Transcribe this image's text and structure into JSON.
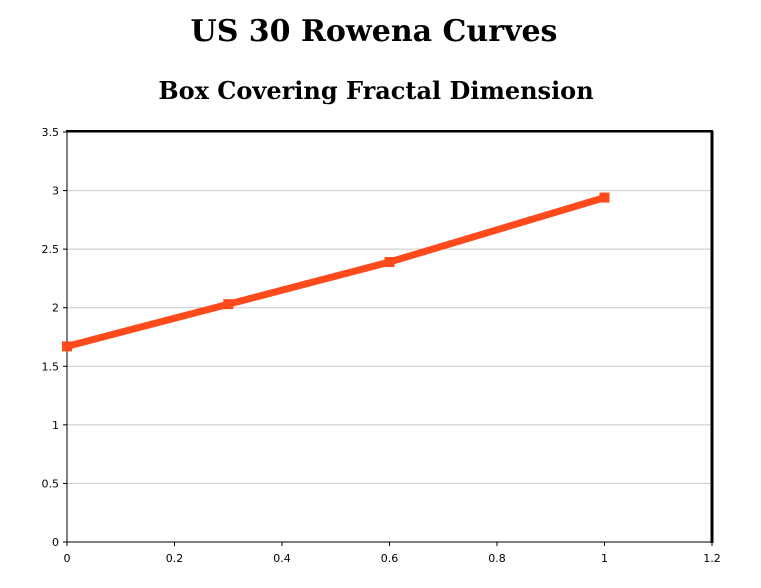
{
  "chart_data": {
    "type": "line",
    "title": "US 30 Rowena Curves",
    "subtitle": "Box Covering Fractal Dimension",
    "xlabel": "",
    "ylabel": "",
    "xlim": [
      0,
      1.2
    ],
    "ylim": [
      0,
      3.5
    ],
    "x_ticks": [
      "0",
      "0.2",
      "0.4",
      "0.6",
      "0.8",
      "1",
      "1.2"
    ],
    "y_ticks": [
      "0",
      "0.5",
      "1",
      "1.5",
      "2",
      "2.5",
      "3",
      "3.5"
    ],
    "grid": "horizontal",
    "legend": "none",
    "series": [
      {
        "color": "#ff4a1c",
        "x": [
          0,
          0.3,
          0.6,
          1.0
        ],
        "y": [
          1.67,
          2.03,
          2.39,
          2.94
        ]
      }
    ]
  }
}
